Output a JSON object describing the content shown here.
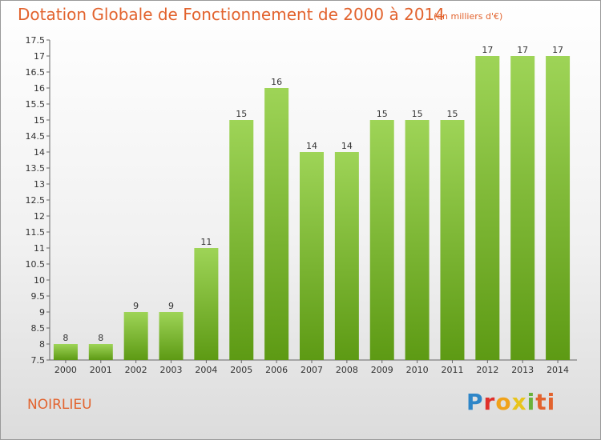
{
  "header": {
    "title": "Dotation Globale de Fonctionnement de 2000 à 2014",
    "subtitle": "(en milliers d'€)"
  },
  "footer": {
    "commune": "NOIRLIEU",
    "logo_letters": [
      "P",
      "r",
      "o",
      "x",
      "i",
      "ti"
    ]
  },
  "colors": {
    "accent": "#e2632e",
    "bar_top": "#9ed457",
    "bar_bottom": "#5d9a14"
  },
  "chart_data": {
    "type": "bar",
    "title": "Dotation Globale de Fonctionnement de 2000 à 2014",
    "subtitle": "(en milliers d'€)",
    "xlabel": "",
    "ylabel": "",
    "categories": [
      "2000",
      "2001",
      "2002",
      "2003",
      "2004",
      "2005",
      "2006",
      "2007",
      "2008",
      "2009",
      "2010",
      "2011",
      "2012",
      "2013",
      "2014"
    ],
    "values": [
      8,
      8,
      9,
      9,
      11,
      15,
      16,
      14,
      14,
      15,
      15,
      15,
      17,
      17,
      17
    ],
    "ylim": [
      7.5,
      17.5
    ],
    "yticks": [
      "7.5",
      "8",
      "8.5",
      "9",
      "9.5",
      "10",
      "10.5",
      "11",
      "11.5",
      "12",
      "12.5",
      "13",
      "13.5",
      "14",
      "14.5",
      "15",
      "15.5",
      "16",
      "16.5",
      "17",
      "17.5"
    ],
    "grid": false,
    "legend": "none"
  }
}
